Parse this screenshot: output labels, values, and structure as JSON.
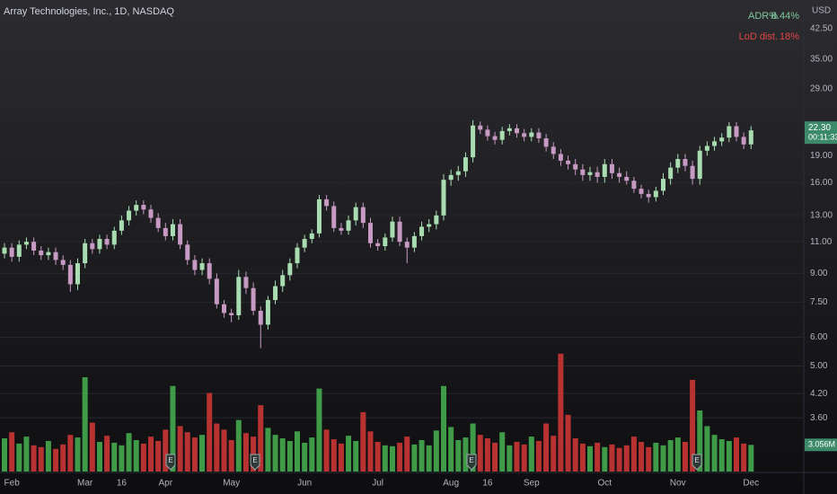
{
  "chart_data": {
    "type": "candlestick",
    "title": "Array Technologies, Inc., 1D, NASDAQ",
    "y_label": "USD",
    "log_scale": true,
    "grid": true,
    "up_color": "#a9dcb0",
    "down_color": "#c79ac4",
    "volume_up_color": "#3f9b48",
    "volume_down_color": "#b83232",
    "ylim": [
      2.56,
      51
    ],
    "yticks": [
      {
        "value": 3.6,
        "label": "3.60"
      },
      {
        "value": 4.2,
        "label": "4.20"
      },
      {
        "value": 5,
        "label": "5.00"
      },
      {
        "value": 6,
        "label": "6.00"
      },
      {
        "value": 7.5,
        "label": "7.50"
      },
      {
        "value": 9,
        "label": "9.00"
      },
      {
        "value": 11,
        "label": "11.00"
      },
      {
        "value": 13,
        "label": "13.00"
      },
      {
        "value": 16,
        "label": "16.00"
      },
      {
        "value": 19,
        "label": "19.00"
      },
      {
        "value": 29,
        "label": "29.00"
      },
      {
        "value": 35,
        "label": "35.00"
      },
      {
        "value": 42.5,
        "label": "42.50"
      }
    ],
    "volume_ylim": [
      0,
      54
    ],
    "categories": [
      null,
      "Feb",
      null,
      null,
      null,
      null,
      null,
      null,
      null,
      null,
      null,
      "Mar",
      null,
      null,
      null,
      null,
      "16",
      null,
      null,
      null,
      null,
      null,
      "Apr",
      null,
      null,
      null,
      null,
      null,
      null,
      null,
      null,
      "May",
      null,
      null,
      null,
      null,
      null,
      null,
      null,
      null,
      null,
      "Jun",
      null,
      null,
      null,
      null,
      null,
      null,
      null,
      null,
      null,
      "Jul",
      null,
      null,
      null,
      null,
      null,
      null,
      null,
      null,
      null,
      "Aug",
      null,
      null,
      null,
      null,
      "16",
      null,
      null,
      null,
      null,
      null,
      "Sep",
      null,
      null,
      null,
      null,
      null,
      null,
      null,
      null,
      null,
      "Oct",
      null,
      null,
      null,
      null,
      null,
      null,
      null,
      null,
      null,
      "Nov",
      null,
      null,
      null,
      null,
      null,
      null,
      null,
      null,
      null,
      "Dec"
    ],
    "open": [
      10.2,
      10.6,
      10.0,
      10.8,
      11.0,
      10.4,
      10.1,
      10.3,
      9.8,
      9.5,
      8.4,
      9.6,
      10.9,
      10.5,
      11.2,
      10.8,
      11.8,
      12.6,
      13.4,
      13.9,
      13.5,
      12.8,
      12.0,
      11.4,
      12.3,
      10.8,
      9.8,
      9.2,
      9.6,
      8.7,
      7.4,
      7.0,
      6.9,
      8.8,
      8.2,
      7.1,
      6.5,
      7.6,
      8.3,
      8.9,
      9.6,
      10.6,
      11.2,
      11.6,
      14.4,
      13.8,
      12.0,
      11.8,
      12.6,
      13.7,
      12.4,
      10.9,
      10.7,
      11.3,
      12.5,
      11.0,
      10.6,
      11.4,
      12.1,
      12.3,
      13.0,
      16.3,
      16.8,
      17.2,
      18.8,
      23.0,
      22.4,
      21.5,
      21.0,
      22.2,
      22.6,
      21.9,
      21.4,
      22.0,
      21.2,
      20.1,
      19.2,
      18.4,
      18.0,
      17.4,
      16.8,
      17.1,
      16.6,
      18.0,
      17.0,
      16.6,
      16.2,
      15.4,
      14.9,
      14.6,
      15.2,
      16.4,
      17.6,
      18.6,
      17.8,
      16.4,
      19.6,
      20.2,
      20.8,
      21.3,
      22.9,
      21.4,
      20.4
    ],
    "high": [
      10.9,
      10.9,
      11.1,
      11.3,
      11.3,
      10.7,
      10.6,
      10.6,
      10.1,
      9.8,
      9.9,
      11.2,
      11.2,
      11.5,
      11.5,
      12.1,
      13.0,
      13.8,
      14.3,
      14.3,
      13.9,
      13.2,
      12.4,
      12.7,
      12.7,
      11.1,
      10.1,
      9.9,
      9.9,
      9.0,
      7.6,
      7.2,
      9.2,
      9.1,
      8.5,
      7.3,
      7.8,
      8.6,
      9.2,
      9.9,
      10.9,
      11.5,
      11.9,
      14.8,
      14.8,
      14.2,
      12.4,
      13.0,
      14.1,
      14.1,
      12.8,
      11.2,
      11.6,
      12.9,
      12.9,
      11.3,
      11.7,
      12.5,
      12.7,
      13.4,
      16.9,
      17.4,
      17.8,
      19.4,
      23.8,
      23.6,
      23.0,
      22.1,
      22.8,
      23.2,
      23.2,
      22.5,
      22.6,
      22.6,
      21.8,
      20.7,
      19.8,
      19.0,
      18.6,
      18.0,
      17.7,
      17.7,
      18.6,
      18.6,
      17.6,
      17.2,
      16.6,
      15.8,
      15.3,
      15.6,
      17.0,
      18.2,
      19.2,
      19.2,
      18.4,
      20.2,
      20.8,
      21.4,
      21.9,
      23.5,
      23.5,
      22.0,
      22.9
    ],
    "low": [
      9.9,
      9.7,
      9.7,
      10.5,
      10.1,
      9.8,
      9.8,
      9.5,
      9.2,
      8.0,
      8.1,
      9.3,
      10.2,
      10.2,
      10.5,
      10.5,
      11.5,
      12.2,
      13.0,
      13.1,
      12.4,
      11.7,
      11.1,
      11.1,
      10.5,
      9.5,
      8.9,
      8.9,
      8.4,
      7.2,
      6.8,
      6.6,
      6.7,
      7.9,
      6.9,
      5.6,
      6.3,
      7.4,
      8.0,
      8.6,
      9.3,
      10.3,
      10.9,
      11.3,
      13.4,
      11.7,
      11.5,
      11.5,
      12.2,
      12.0,
      10.6,
      10.4,
      10.4,
      11.0,
      10.7,
      9.6,
      10.3,
      11.1,
      11.7,
      11.9,
      12.6,
      15.7,
      16.2,
      16.6,
      18.2,
      21.8,
      20.9,
      20.4,
      20.4,
      21.6,
      21.3,
      20.8,
      20.8,
      20.6,
      19.5,
      18.6,
      17.8,
      17.4,
      16.8,
      16.2,
      16.2,
      16.0,
      16.0,
      16.4,
      16.0,
      15.8,
      15.0,
      14.5,
      14.1,
      14.2,
      14.8,
      15.8,
      17.0,
      17.2,
      15.8,
      15.8,
      19.0,
      19.6,
      20.2,
      20.7,
      20.8,
      19.8,
      19.8
    ],
    "close": [
      10.6,
      10.0,
      10.8,
      11.0,
      10.4,
      10.1,
      10.3,
      9.8,
      9.5,
      8.4,
      9.6,
      10.9,
      10.5,
      11.2,
      10.8,
      11.8,
      12.6,
      13.4,
      13.9,
      13.5,
      12.8,
      12.0,
      11.4,
      12.3,
      10.8,
      9.8,
      9.2,
      9.6,
      8.7,
      7.4,
      7.0,
      6.9,
      8.8,
      8.2,
      7.1,
      6.5,
      7.6,
      8.3,
      8.9,
      9.6,
      10.6,
      11.2,
      11.6,
      14.4,
      13.8,
      12.0,
      11.8,
      12.6,
      13.7,
      12.4,
      10.9,
      10.7,
      11.3,
      12.5,
      11.0,
      10.6,
      11.4,
      12.1,
      12.3,
      13.0,
      16.3,
      16.8,
      17.2,
      18.8,
      23.0,
      22.4,
      21.5,
      21.0,
      22.2,
      22.6,
      21.9,
      21.4,
      22.0,
      21.2,
      20.1,
      19.2,
      18.4,
      18.0,
      17.4,
      16.8,
      17.1,
      16.6,
      18.0,
      17.0,
      16.6,
      16.2,
      15.4,
      14.9,
      14.6,
      15.2,
      16.4,
      17.6,
      18.6,
      17.8,
      16.4,
      19.6,
      20.2,
      20.8,
      21.3,
      22.9,
      21.4,
      20.4,
      22.3
    ],
    "volume": [
      3.8,
      4.5,
      3.2,
      4.0,
      3.0,
      2.8,
      3.5,
      2.6,
      3.1,
      4.2,
      3.9,
      10.8,
      5.6,
      3.4,
      4.1,
      3.3,
      3.0,
      4.4,
      3.6,
      3.2,
      4.0,
      3.5,
      4.8,
      9.8,
      5.2,
      4.5,
      3.9,
      4.2,
      9.0,
      5.5,
      4.8,
      3.6,
      5.9,
      4.4,
      4.0,
      7.6,
      5.0,
      4.2,
      3.8,
      3.5,
      4.6,
      3.3,
      3.9,
      9.5,
      4.8,
      3.7,
      3.2,
      4.1,
      3.5,
      6.8,
      4.6,
      3.4,
      3.0,
      2.9,
      3.3,
      4.0,
      3.1,
      3.6,
      3.0,
      4.7,
      9.8,
      5.1,
      3.6,
      3.9,
      5.5,
      4.2,
      3.8,
      3.3,
      4.5,
      3.0,
      3.4,
      3.1,
      4.0,
      3.5,
      5.5,
      4.1,
      13.5,
      6.5,
      3.8,
      3.2,
      2.9,
      3.3,
      2.8,
      3.1,
      2.7,
      3.0,
      4.0,
      3.4,
      2.8,
      3.3,
      3.0,
      3.6,
      3.9,
      3.4,
      10.5,
      7.0,
      5.2,
      4.2,
      3.7,
      3.5,
      3.9,
      3.2,
      3.056
    ],
    "last_close_label": "22.30",
    "countdown": "00:11:33",
    "last_volume_label": "3.056M",
    "label_color": "#3d8a6b",
    "indicators": [
      {
        "name": "ADR%",
        "value": "8.44%",
        "color": "#7fc79a"
      },
      {
        "name": "LoD dist.",
        "value": "18%",
        "color": "#e04444"
      }
    ],
    "earnings_label": "E"
  }
}
